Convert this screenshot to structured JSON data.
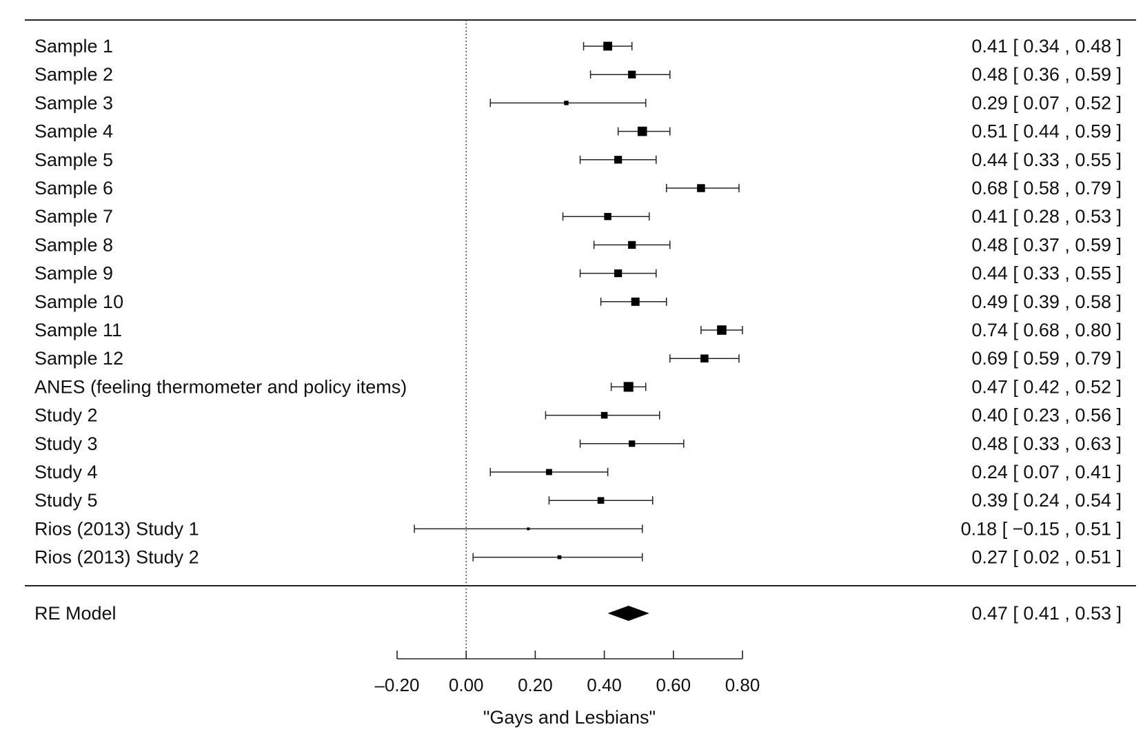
{
  "chart_data": {
    "type": "forest",
    "xlabel": "\"Gays and Lesbians\"",
    "xlim": [
      -0.2,
      0.8
    ],
    "xticks": [
      -0.2,
      0.0,
      0.2,
      0.4,
      0.6,
      0.8
    ],
    "xtick_labels": [
      "–0.20",
      "0.00",
      "0.20",
      "0.40",
      "0.60",
      "0.80"
    ],
    "reference_line": 0.0,
    "studies": [
      {
        "label": "Sample 1",
        "est": 0.41,
        "lo": 0.34,
        "hi": 0.48,
        "text": "0.41 [  0.34 , 0.48 ]",
        "weight": 0.8
      },
      {
        "label": "Sample 2",
        "est": 0.48,
        "lo": 0.36,
        "hi": 0.59,
        "text": "0.48 [  0.36 , 0.59 ]",
        "weight": 0.7
      },
      {
        "label": "Sample 3",
        "est": 0.29,
        "lo": 0.07,
        "hi": 0.52,
        "text": "0.29 [  0.07 , 0.52 ]",
        "weight": 0.4
      },
      {
        "label": "Sample 4",
        "est": 0.51,
        "lo": 0.44,
        "hi": 0.59,
        "text": "0.51 [  0.44 , 0.59 ]",
        "weight": 0.85
      },
      {
        "label": "Sample 5",
        "est": 0.44,
        "lo": 0.33,
        "hi": 0.55,
        "text": "0.44 [  0.33 , 0.55 ]",
        "weight": 0.7
      },
      {
        "label": "Sample 6",
        "est": 0.68,
        "lo": 0.58,
        "hi": 0.79,
        "text": "0.68 [  0.58 , 0.79 ]",
        "weight": 0.72
      },
      {
        "label": "Sample 7",
        "est": 0.41,
        "lo": 0.28,
        "hi": 0.53,
        "text": "0.41 [  0.28 , 0.53 ]",
        "weight": 0.65
      },
      {
        "label": "Sample 8",
        "est": 0.48,
        "lo": 0.37,
        "hi": 0.59,
        "text": "0.48 [  0.37 , 0.59 ]",
        "weight": 0.7
      },
      {
        "label": "Sample 9",
        "est": 0.44,
        "lo": 0.33,
        "hi": 0.55,
        "text": "0.44 [  0.33 , 0.55 ]",
        "weight": 0.7
      },
      {
        "label": "Sample 10",
        "est": 0.49,
        "lo": 0.39,
        "hi": 0.58,
        "text": "0.49 [  0.39 , 0.58 ]",
        "weight": 0.75
      },
      {
        "label": "Sample 11",
        "est": 0.74,
        "lo": 0.68,
        "hi": 0.8,
        "text": "0.74 [  0.68 , 0.80 ]",
        "weight": 0.85
      },
      {
        "label": "Sample 12",
        "est": 0.69,
        "lo": 0.59,
        "hi": 0.79,
        "text": "0.69 [  0.59 , 0.79 ]",
        "weight": 0.72
      },
      {
        "label": "ANES (feeling thermometer and policy items)",
        "est": 0.47,
        "lo": 0.42,
        "hi": 0.52,
        "text": "0.47 [  0.42 , 0.52 ]",
        "weight": 0.88
      },
      {
        "label": "Study 2",
        "est": 0.4,
        "lo": 0.23,
        "hi": 0.56,
        "text": "0.40 [  0.23 , 0.56 ]",
        "weight": 0.6
      },
      {
        "label": "Study 3",
        "est": 0.48,
        "lo": 0.33,
        "hi": 0.63,
        "text": "0.48 [  0.33 , 0.63 ]",
        "weight": 0.58
      },
      {
        "label": "Study 4",
        "est": 0.24,
        "lo": 0.07,
        "hi": 0.41,
        "text": "0.24 [  0.07 , 0.41 ]",
        "weight": 0.55
      },
      {
        "label": "Study 5",
        "est": 0.39,
        "lo": 0.24,
        "hi": 0.54,
        "text": "0.39 [  0.24 , 0.54 ]",
        "weight": 0.6
      },
      {
        "label": "Rios (2013) Study 1",
        "est": 0.18,
        "lo": -0.15,
        "hi": 0.51,
        "text": "0.18 [ −0.15 , 0.51 ]",
        "weight": 0.25
      },
      {
        "label": "Rios (2013) Study 2",
        "est": 0.27,
        "lo": 0.02,
        "hi": 0.51,
        "text": "0.27 [  0.02 , 0.51 ]",
        "weight": 0.35
      }
    ],
    "summary": {
      "label": "RE Model",
      "est": 0.47,
      "lo": 0.41,
      "hi": 0.53,
      "text": "0.47 [  0.41 , 0.53 ]"
    }
  }
}
